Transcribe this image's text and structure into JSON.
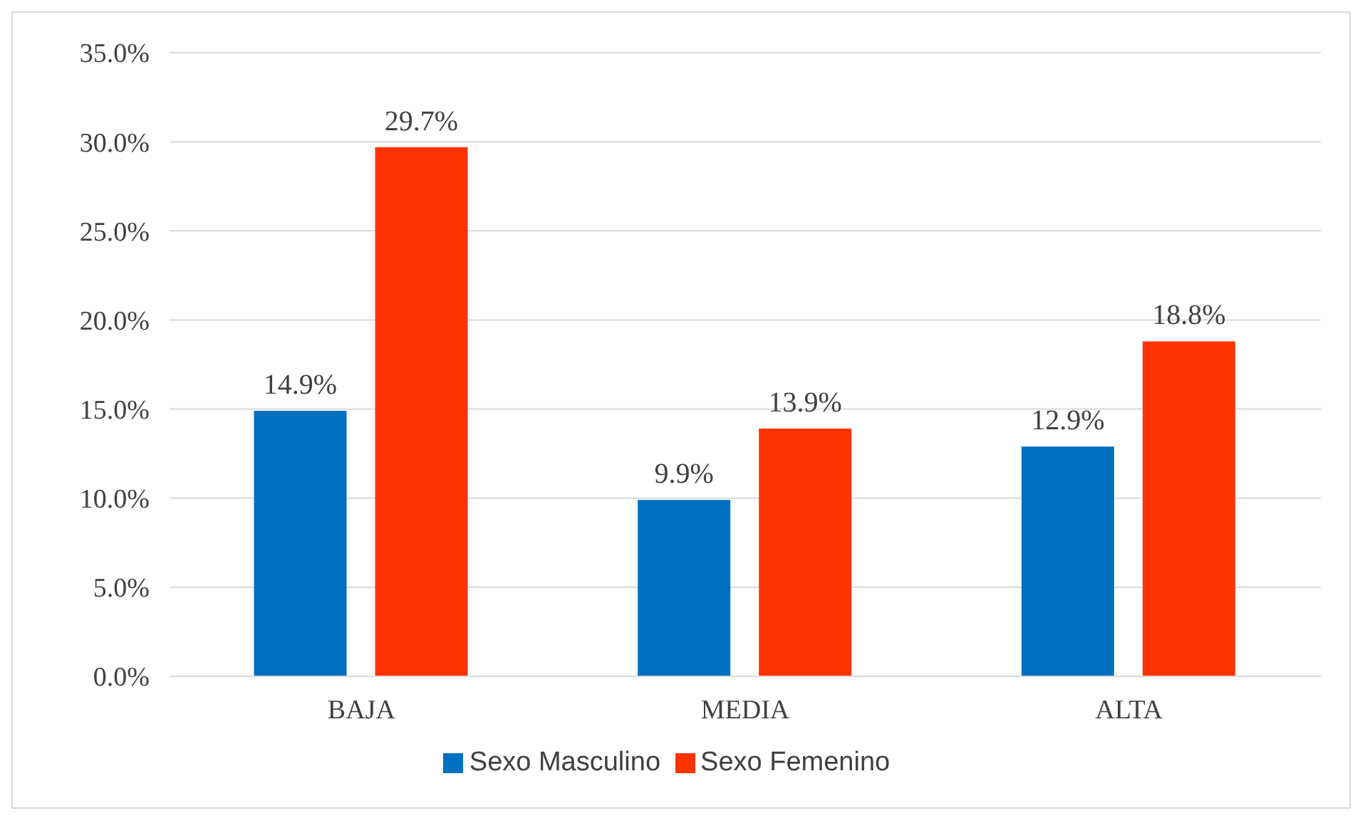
{
  "chart_data": {
    "type": "bar",
    "categories": [
      "BAJA",
      "MEDIA",
      "ALTA"
    ],
    "series": [
      {
        "name": "Sexo Masculino",
        "color": "#0070c0",
        "values": [
          14.9,
          9.9,
          12.9
        ],
        "value_labels": [
          "14.9%",
          "9.9%",
          "12.9%"
        ]
      },
      {
        "name": "Sexo Femenino",
        "color": "#ff3300",
        "values": [
          29.7,
          13.9,
          18.8
        ],
        "value_labels": [
          "29.7%",
          "13.9%",
          "18.8%"
        ]
      }
    ],
    "ylim": [
      0,
      35
    ],
    "yticks": [
      {
        "value": 0,
        "label": "0.0%"
      },
      {
        "value": 5,
        "label": "5.0%"
      },
      {
        "value": 10,
        "label": "10.0%"
      },
      {
        "value": 15,
        "label": "15.0%"
      },
      {
        "value": 20,
        "label": "20.0%"
      },
      {
        "value": 25,
        "label": "25.0%"
      },
      {
        "value": 30,
        "label": "30.0%"
      },
      {
        "value": 35,
        "label": "35.0%"
      }
    ],
    "grid": "y",
    "legend": "bottom"
  }
}
